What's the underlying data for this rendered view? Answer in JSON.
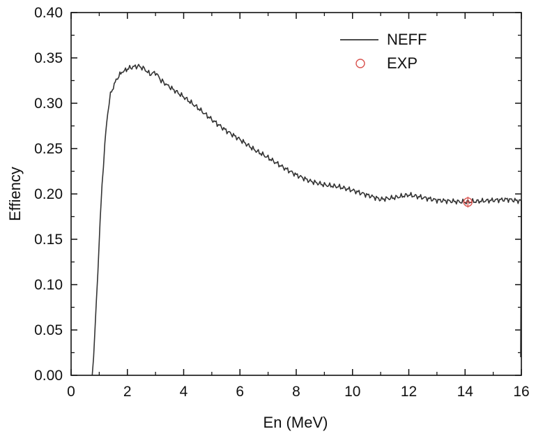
{
  "chart_data": {
    "type": "line",
    "title": "",
    "xlabel": "En (MeV)",
    "ylabel": "Effiency",
    "xlim": [
      0,
      16
    ],
    "ylim": [
      0,
      0.4
    ],
    "xticks": [
      0,
      2,
      4,
      6,
      8,
      10,
      12,
      14,
      16
    ],
    "xtick_labels": [
      "0",
      "2",
      "4",
      "6",
      "8",
      "10",
      "12",
      "14",
      "16"
    ],
    "yticks": [
      0.0,
      0.05,
      0.1,
      0.15,
      0.2,
      0.25,
      0.3,
      0.35,
      0.4
    ],
    "ytick_labels": [
      "0.00",
      "0.05",
      "0.10",
      "0.15",
      "0.20",
      "0.25",
      "0.30",
      "0.35",
      "0.40"
    ],
    "grid": false,
    "legend_position": "top-right",
    "series": [
      {
        "name": "NEFF",
        "kind": "line",
        "color": "#333333",
        "x": [
          0.75,
          0.8,
          0.9,
          1.0,
          1.1,
          1.2,
          1.3,
          1.4,
          1.5,
          1.6,
          1.7,
          1.8,
          1.9,
          2.0,
          2.2,
          2.4,
          2.6,
          2.8,
          3.0,
          3.2,
          3.5,
          4.0,
          4.5,
          5.0,
          5.5,
          6.0,
          6.5,
          7.0,
          7.5,
          8.0,
          8.5,
          9.0,
          9.5,
          10.0,
          10.5,
          11.0,
          11.5,
          12.0,
          12.5,
          13.0,
          13.5,
          14.0,
          14.5,
          15.0,
          15.5,
          16.0
        ],
        "values": [
          0.0,
          0.02,
          0.08,
          0.15,
          0.21,
          0.255,
          0.29,
          0.31,
          0.318,
          0.325,
          0.33,
          0.334,
          0.336,
          0.338,
          0.34,
          0.341,
          0.338,
          0.332,
          0.334,
          0.325,
          0.318,
          0.307,
          0.295,
          0.282,
          0.27,
          0.26,
          0.249,
          0.24,
          0.23,
          0.221,
          0.214,
          0.21,
          0.208,
          0.204,
          0.199,
          0.194,
          0.196,
          0.199,
          0.196,
          0.193,
          0.192,
          0.191,
          0.192,
          0.193,
          0.194,
          0.192
        ]
      },
      {
        "name": "EXP",
        "kind": "scatter",
        "color": "#d9534f",
        "x": [
          14.1
        ],
        "values": [
          0.191
        ],
        "yerr": [
          0.006
        ]
      }
    ]
  }
}
